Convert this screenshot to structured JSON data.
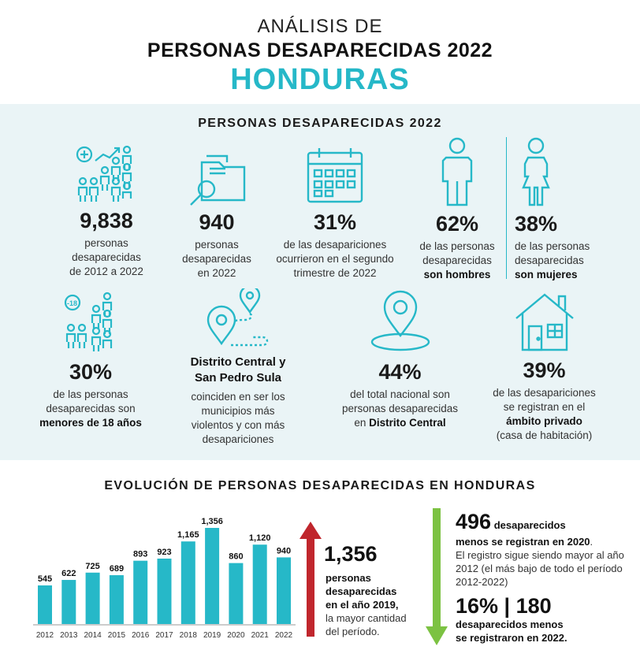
{
  "header": {
    "line1": "ANÁLISIS DE",
    "line2": "PERSONAS DESAPARECIDAS 2022",
    "line3": "HONDURAS"
  },
  "panel": {
    "title": "PERSONAS DESAPARECIDAS 2022",
    "stats": [
      {
        "value": "9,838",
        "l1": "personas",
        "l2": "desaparecidas",
        "l3": "de 2012 a 2022"
      },
      {
        "value": "940",
        "l1": "personas",
        "l2": "desaparecidas",
        "l3": "en 2022"
      },
      {
        "value": "31%",
        "l1": "de las desapariciones",
        "l2": "ocurrieron en el segundo",
        "l3": "trimestre de 2022"
      },
      {
        "value": "62%",
        "l1": "de las personas",
        "l2": "desaparecidas",
        "l3b": "son hombres"
      },
      {
        "value": "38%",
        "l1": "de las personas",
        "l2": "desaparecidas",
        "l3b": "son mujeres"
      },
      {
        "value": "30%",
        "l1": "de las personas",
        "l2": "desaparecidas son",
        "l3b": "menores de 18 años"
      },
      {
        "title1": "Distrito Central y",
        "title2": "San Pedro Sula",
        "l1": "coinciden en ser los",
        "l2": "municipios más",
        "l3": "violentos y con más",
        "l4": "desapariciones"
      },
      {
        "value": "44%",
        "l1": "del total nacional son",
        "l2": "personas desaparecidas",
        "l3a": "en ",
        "l3b": "Distrito Central"
      },
      {
        "value": "39%",
        "l1": "de las desapariciones",
        "l2": "se registran en el",
        "l3b": "ámbito privado",
        "l4": "(casa de habitación)"
      }
    ],
    "icons": [
      "people-growth-icon",
      "folder-search-icon",
      "calendar-icon",
      "man-icon",
      "woman-icon",
      "minors-icon",
      "route-pins-icon",
      "location-pin-icon",
      "house-icon"
    ]
  },
  "evolution": {
    "title": "EVOLUCIÓN DE PERSONAS DESAPARECIDAS EN HONDURAS",
    "mid_value": "1,356",
    "mid_l1": "personas",
    "mid_l2": "desaparecidas",
    "mid_l3": "en el año 2019,",
    "mid_l4": "la mayor cantidad",
    "mid_l5": "del período.",
    "right1_value": "496",
    "right1_bold": "desaparecidos",
    "right1_bold2": "menos se registran en 2020",
    "right1_text": "El registro sigue siendo mayor al año 2012 (el más bajo de todo el período 2012-2022)",
    "right2_value": "16% | 180",
    "right2_l1": "desaparecidos menos",
    "right2_l2": "se registraron en 2022"
  },
  "colors": {
    "accent": "#26b8c8",
    "red": "#c0262d",
    "green": "#7cc242"
  },
  "chart_data": {
    "type": "bar",
    "title": "EVOLUCIÓN DE PERSONAS DESAPARECIDAS EN HONDURAS",
    "categories": [
      "2012",
      "2013",
      "2014",
      "2015",
      "2016",
      "2017",
      "2018",
      "2019",
      "2020",
      "2021",
      "2022"
    ],
    "values": [
      545,
      622,
      725,
      689,
      893,
      923,
      1165,
      1356,
      860,
      1120,
      940
    ],
    "labels": [
      "545",
      "622",
      "725",
      "689",
      "893",
      "923",
      "1,165",
      "1,356",
      "860",
      "1,120",
      "940"
    ],
    "xlabel": "",
    "ylabel": "",
    "ylim": [
      0,
      1356
    ],
    "grid": false,
    "legend": "none"
  }
}
